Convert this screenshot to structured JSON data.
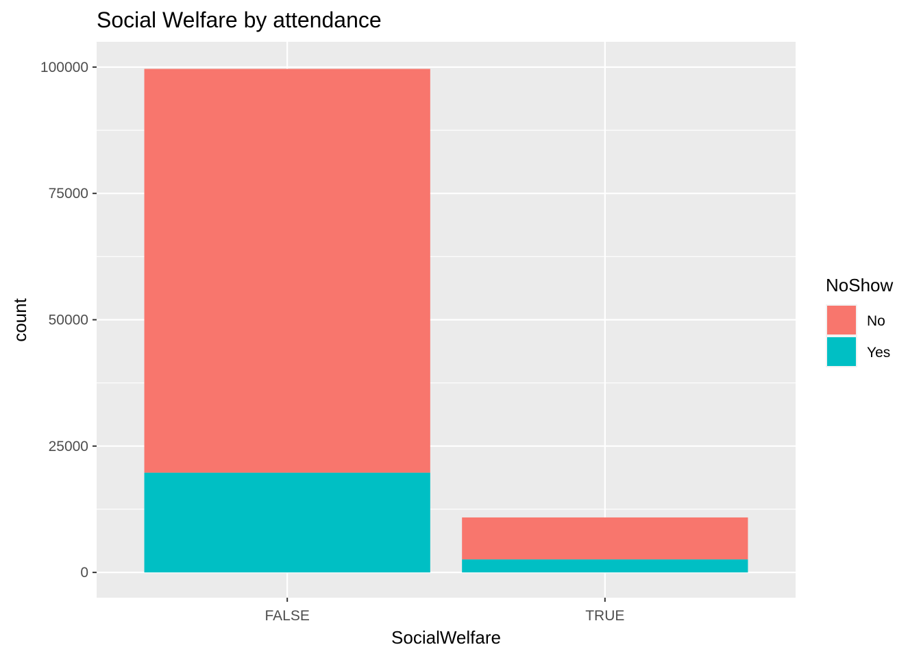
{
  "chart_data": {
    "type": "bar",
    "stacked": true,
    "title": "Social Welfare by attendance",
    "xlabel": "SocialWelfare",
    "ylabel": "count",
    "categories": [
      "FALSE",
      "TRUE"
    ],
    "series": [
      {
        "name": "No",
        "values": [
          79900,
          8300
        ]
      },
      {
        "name": "Yes",
        "values": [
          19740,
          2580
        ]
      }
    ],
    "ylim": [
      -5000,
      105000
    ],
    "yticks": [
      0,
      25000,
      50000,
      75000,
      100000
    ],
    "ytick_labels": [
      "0",
      "25000",
      "50000",
      "75000",
      "100000"
    ],
    "grid": true,
    "legend": {
      "title": "NoShow",
      "position": "right"
    },
    "colors": {
      "No": "#F8766D",
      "Yes": "#00BFC4",
      "panel": "#EBEBEB",
      "grid": "#FFFFFF"
    }
  }
}
